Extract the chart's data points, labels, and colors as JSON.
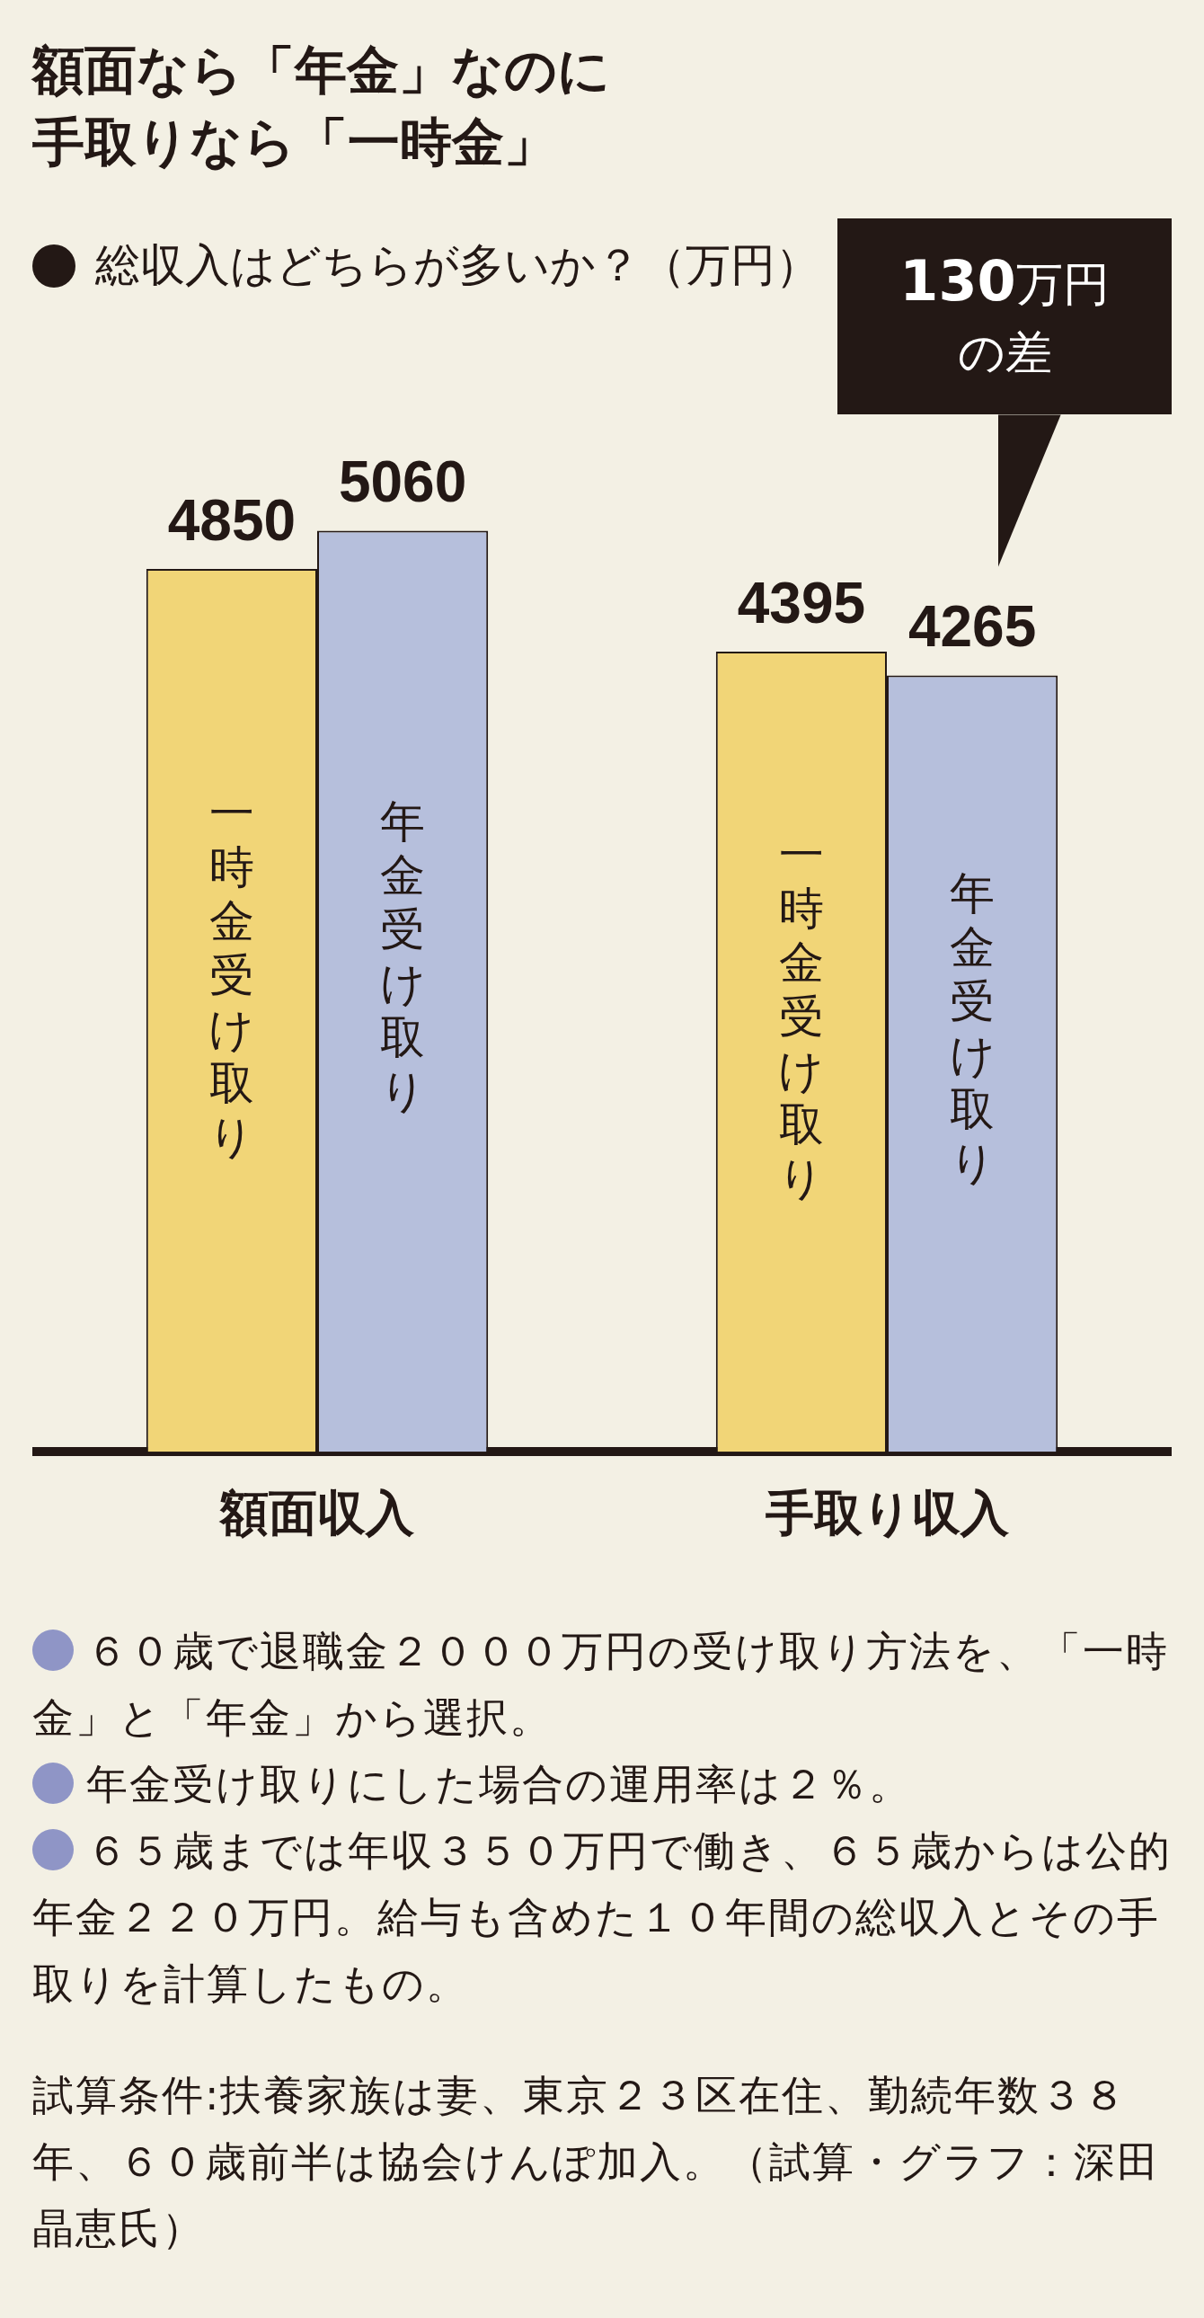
{
  "chart_data": {
    "type": "bar",
    "title": "額面なら「年金」なのに手取りなら「一時金」",
    "subtitle": "総収入はどちらが多いか？（万円）",
    "categories": [
      "額面収入",
      "手取り収入"
    ],
    "series": [
      {
        "name": "一時金受け取り",
        "color": "#f1d577",
        "values": [
          4850,
          4395
        ]
      },
      {
        "name": "年金受け取り",
        "color": "#b6bfdc",
        "values": [
          5060,
          4265
        ]
      }
    ],
    "data_labels": true,
    "grid": false,
    "legend": false,
    "annotations": [
      "130万円の差",
      "６０歳で退職金２０００万円の受け取り方法を、「一時金」と「年金」から選択。",
      "年金受け取りにした場合の運用率は２％。",
      "６５歳までは年収３５０万円で働き、６５歳からは公的年金２２０万円。給与も含めた１０年間の総収入とその手取りを計算したもの。",
      "試算条件:扶養家族は妻、東京２３区在住、勤続年数３８年、６０歳前半は協会けんぽ加入。（試算・グラフ：深田晶恵氏）"
    ]
  }
}
